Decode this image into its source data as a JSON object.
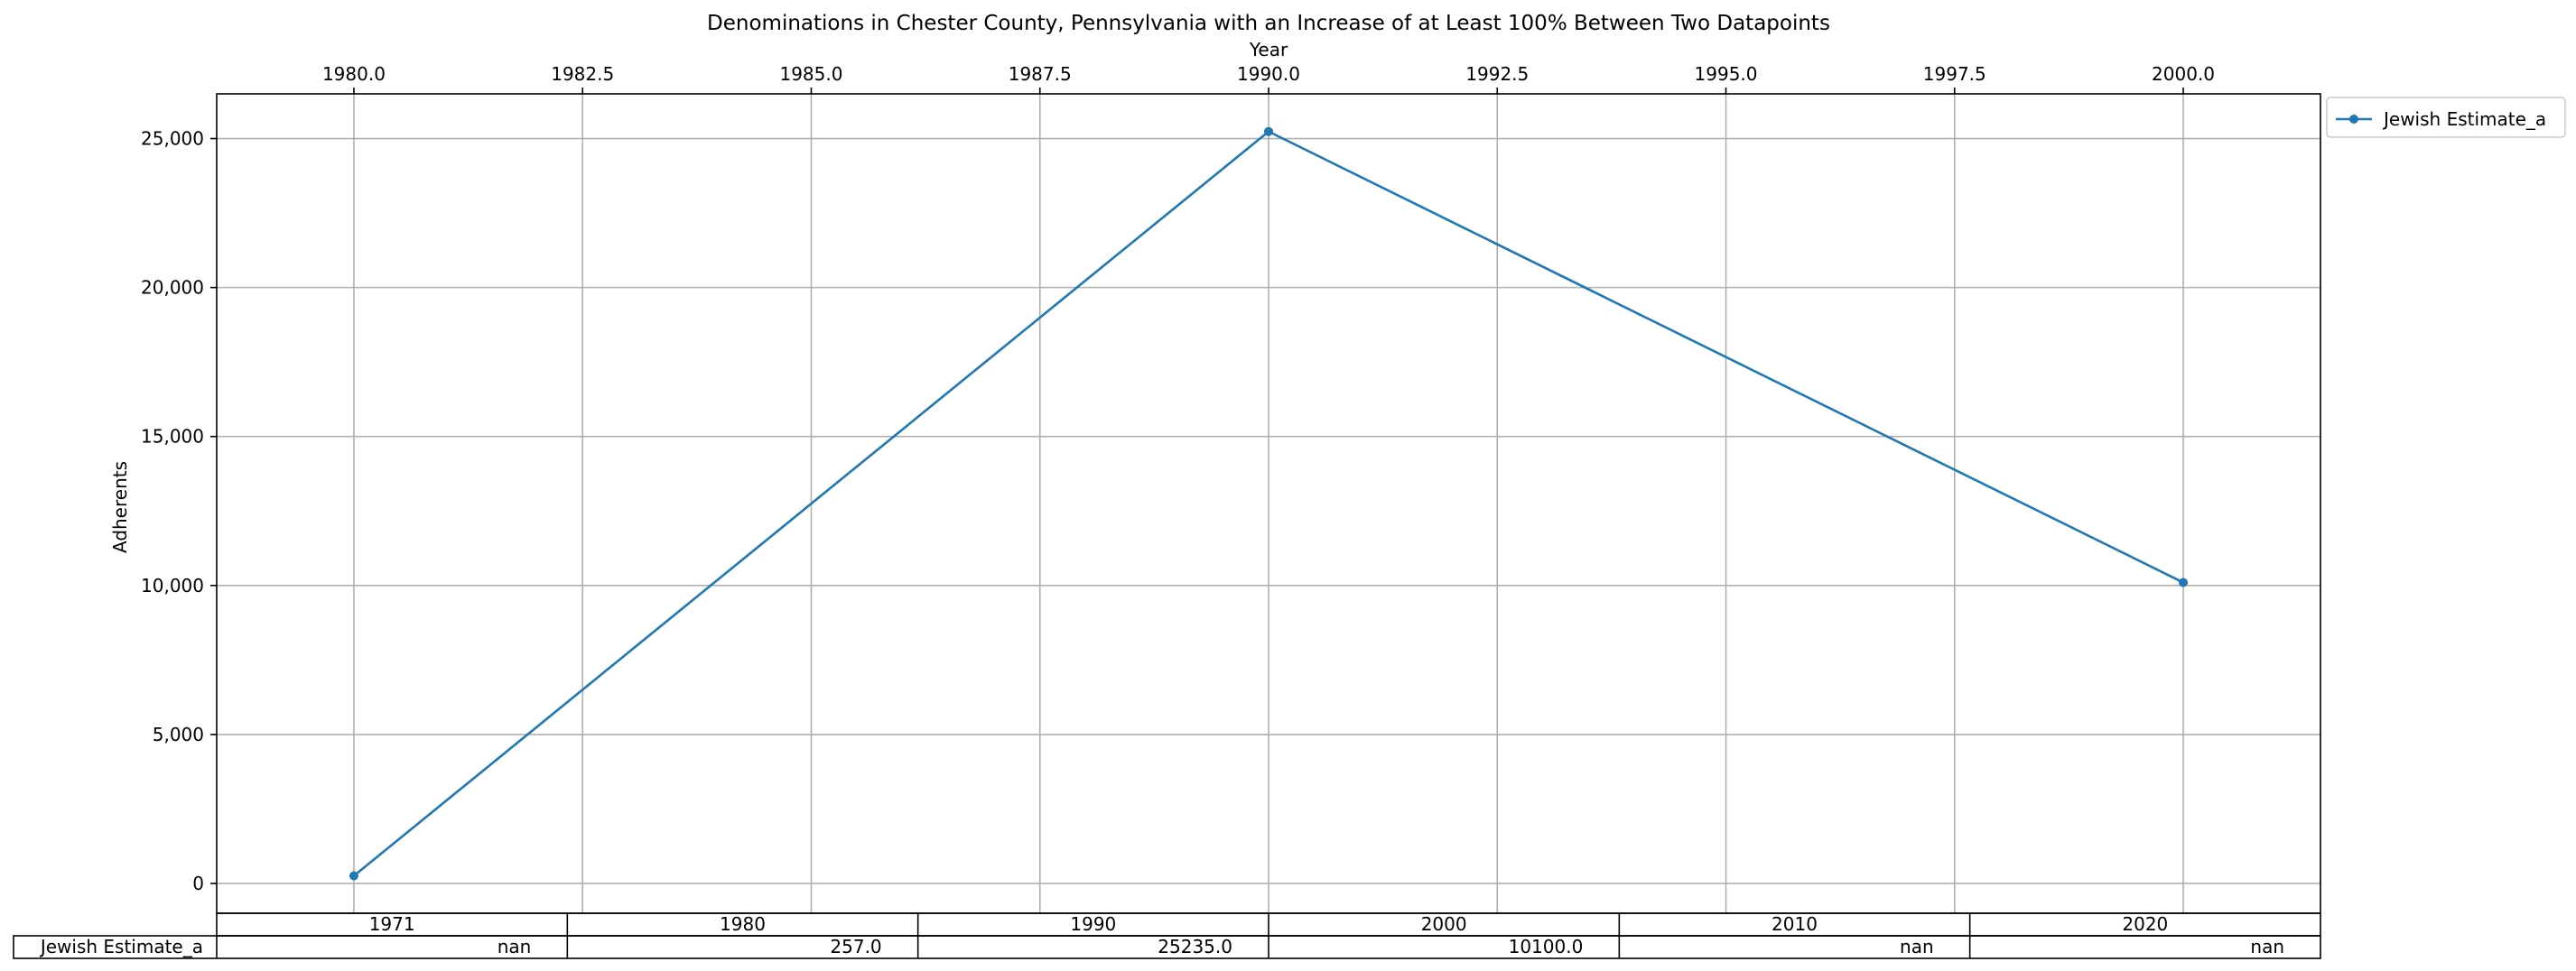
{
  "chart_data": {
    "type": "line",
    "title": "Denominations in Chester County, Pennsylvania with an Increase of at Least 100% Between Two Datapoints",
    "xlabel": "Year",
    "ylabel": "Adherents",
    "x_ticks": [
      "1980.0",
      "1982.5",
      "1985.0",
      "1987.5",
      "1990.0",
      "1992.5",
      "1995.0",
      "1997.5",
      "2000.0"
    ],
    "y_ticks": [
      "0",
      "5,000",
      "10,000",
      "15,000",
      "20,000",
      "25,000"
    ],
    "xlim": [
      1978.5,
      2001.5
    ],
    "ylim": [
      -1000,
      26500
    ],
    "x_axis_position": "top",
    "grid": true,
    "legend_position": "outside-top-right",
    "series": [
      {
        "name": "Jewish Estimate_a",
        "color": "#1f77b4",
        "marker": "circle",
        "x": [
          1980,
          1990,
          2000
        ],
        "y": [
          257.0,
          25235.0,
          10100.0
        ]
      }
    ],
    "table": {
      "columns": [
        "1971",
        "1980",
        "1990",
        "2000",
        "2010",
        "2020"
      ],
      "rows": [
        {
          "label": "Jewish Estimate_a",
          "values": [
            "nan",
            "257.0",
            "25235.0",
            "10100.0",
            "nan",
            "nan"
          ]
        }
      ]
    }
  }
}
